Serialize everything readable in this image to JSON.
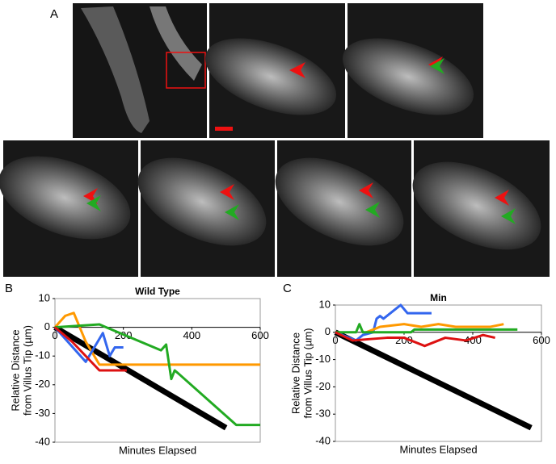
{
  "panel_labels": [
    "A",
    "B",
    "C"
  ],
  "chart_data": [
    {
      "type": "line",
      "title": "Wild Type",
      "x_label": "Minutes Elapsed",
      "y_label": [
        "Relative Distance",
        "from Villus Tip (µm)"
      ],
      "xlim": [
        0,
        600
      ],
      "xticks": [
        0,
        200,
        400,
        600
      ],
      "ylim": [
        -40,
        10
      ],
      "yticks": [
        -40,
        -30,
        -20,
        -10,
        0,
        10
      ],
      "grid": false,
      "series": [
        {
          "color": "#000000",
          "x": [
            0,
            500
          ],
          "values": [
            0,
            -35
          ]
        },
        {
          "color": "#ff9900",
          "x": [
            0,
            30,
            55,
            90,
            130,
            600
          ],
          "values": [
            0,
            4,
            5,
            -5,
            -13,
            -13
          ]
        },
        {
          "color": "#22aa22",
          "x": [
            0,
            130,
            310,
            325,
            340,
            350,
            360,
            530,
            600
          ],
          "values": [
            0,
            1,
            -8,
            -6,
            -18,
            -15,
            -16,
            -34,
            -34
          ]
        },
        {
          "color": "#3366ee",
          "x": [
            0,
            90,
            110,
            140,
            160,
            175,
            200
          ],
          "values": [
            0,
            -12,
            -8,
            -2,
            -10,
            -7,
            -7
          ]
        },
        {
          "color": "#dd1111",
          "x": [
            0,
            50,
            130,
            210
          ],
          "values": [
            0,
            -5,
            -15,
            -15
          ]
        }
      ]
    },
    {
      "type": "line",
      "title": "Min",
      "x_label": "Minutes Elapsed",
      "y_label": [
        "Relative Distance",
        "from Villus Tip (µm)"
      ],
      "xlim": [
        0,
        600
      ],
      "xticks": [
        0,
        200,
        400,
        600
      ],
      "ylim": [
        -40,
        10
      ],
      "yticks": [
        -40,
        -30,
        -20,
        -10,
        0,
        10
      ],
      "grid": false,
      "series": [
        {
          "color": "#000000",
          "x": [
            0,
            570
          ],
          "values": [
            0,
            -35
          ]
        },
        {
          "color": "#3366ee",
          "x": [
            0,
            60,
            80,
            110,
            120,
            130,
            140,
            190,
            210,
            280
          ],
          "values": [
            0,
            -3,
            -1,
            0,
            5,
            6,
            5,
            10,
            7,
            7
          ]
        },
        {
          "color": "#ff9900",
          "x": [
            90,
            130,
            200,
            250,
            300,
            350,
            400,
            450,
            490
          ],
          "values": [
            0,
            2,
            3,
            2,
            3,
            2,
            2,
            2,
            3
          ]
        },
        {
          "color": "#22aa22",
          "x": [
            0,
            60,
            70,
            80,
            220,
            230,
            530
          ],
          "values": [
            0,
            0,
            3,
            0,
            0,
            1,
            1
          ]
        },
        {
          "color": "#dd1111",
          "x": [
            0,
            50,
            150,
            200,
            260,
            320,
            380,
            430,
            465
          ],
          "values": [
            0,
            -3,
            -2,
            -2,
            -5,
            -2,
            -3,
            -1,
            -2
          ]
        }
      ]
    }
  ]
}
